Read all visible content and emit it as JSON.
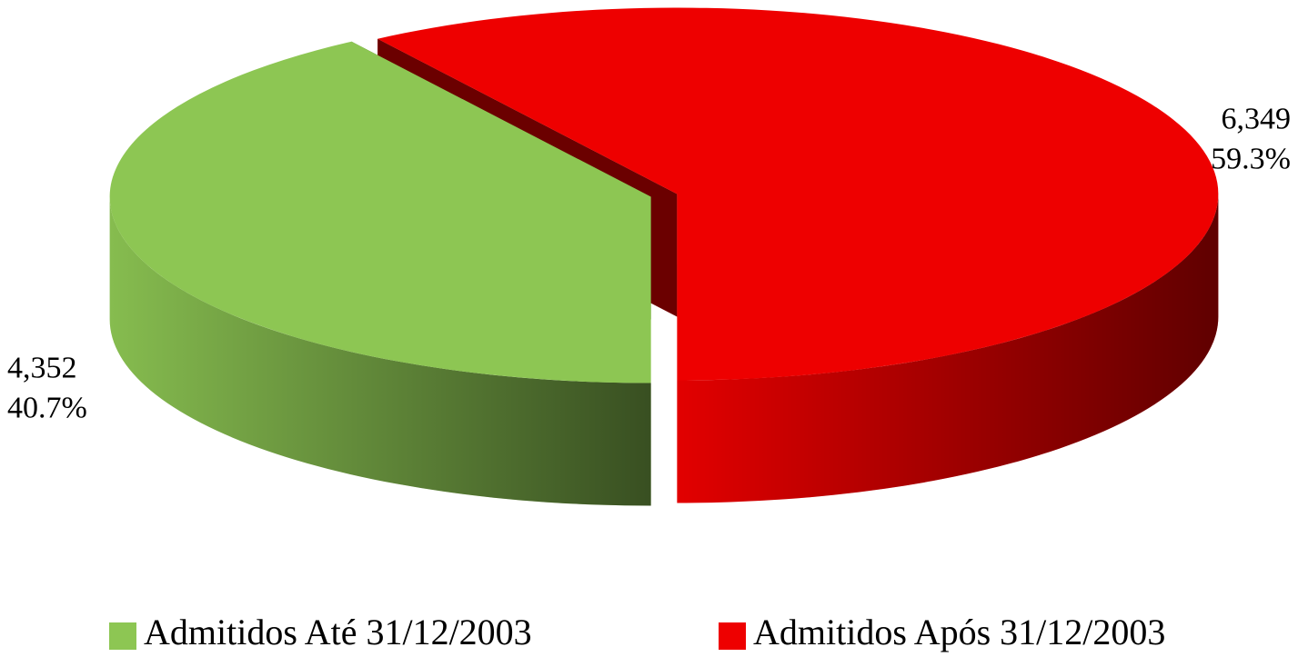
{
  "chart_data": {
    "type": "pie",
    "categories": [
      "Admitidos Até 31/12/2003",
      "Admitidos Após 31/12/2003"
    ],
    "values": [
      4352,
      6349
    ],
    "value_labels": [
      "4,352",
      "6,349"
    ],
    "percents": [
      40.7,
      59.3
    ],
    "percent_labels": [
      "40.7%",
      "59.3%"
    ],
    "colors": [
      "#8dc653",
      "#ee0000"
    ],
    "legend": "bottom"
  }
}
